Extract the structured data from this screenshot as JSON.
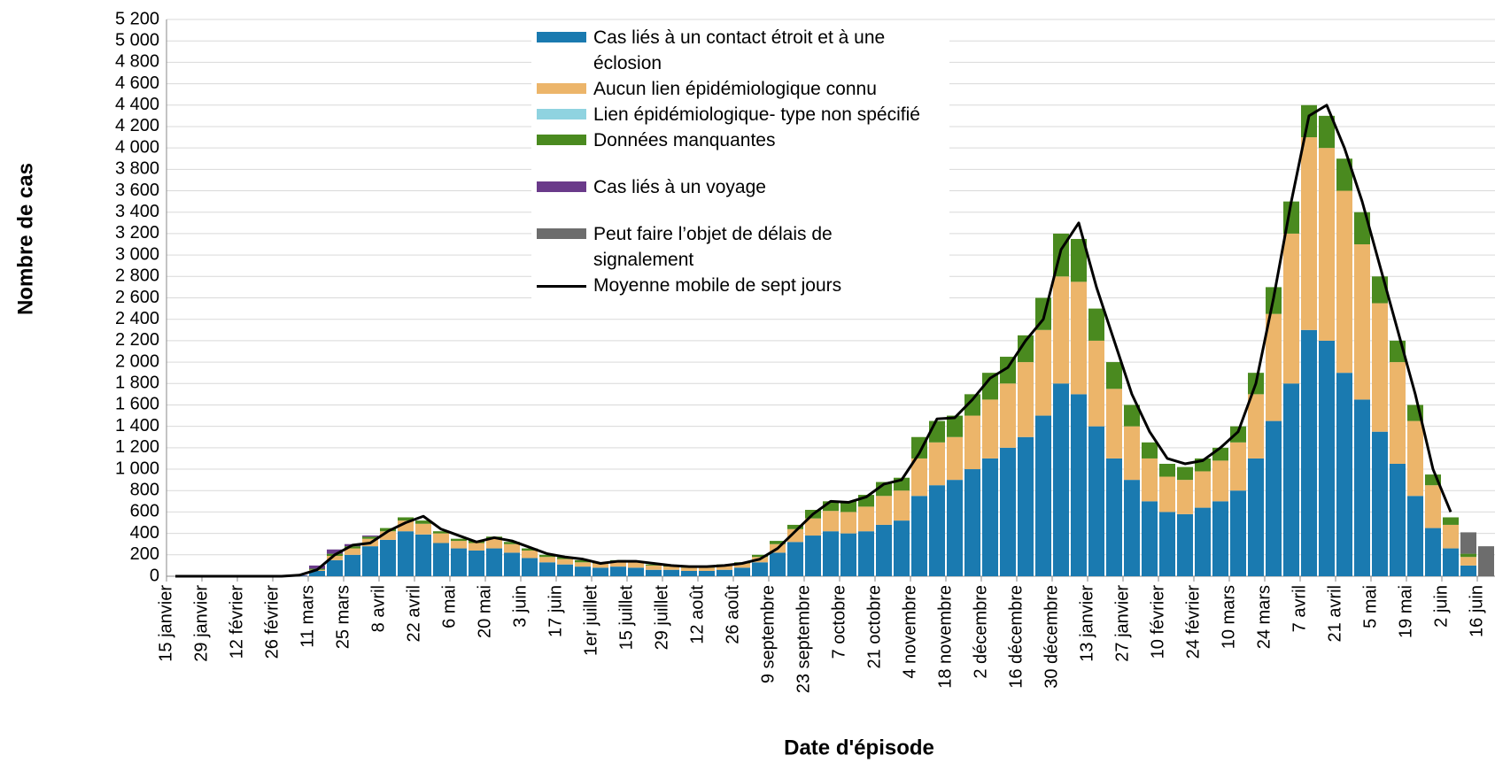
{
  "chart_data": {
    "type": "stacked-bar",
    "y_label": "Nombre de cas",
    "x_label": "Date d'épisode",
    "categories": [
      "15 janvier",
      null,
      "29 janvier",
      null,
      "12 février",
      null,
      "26 février",
      null,
      "11 mars",
      null,
      "25 mars",
      null,
      "8 avril",
      null,
      "22 avril",
      null,
      "6 mai",
      null,
      "20 mai",
      null,
      "3 juin",
      null,
      "17 juin",
      null,
      "1er juillet",
      null,
      "15 juillet",
      null,
      "29 juillet",
      null,
      "12 août",
      null,
      "26 août",
      null,
      "9 septembre",
      null,
      "23 septembre",
      null,
      "7 octobre",
      null,
      "21 octobre",
      null,
      "4 novembre",
      null,
      "18 novembre",
      null,
      "2 décembre",
      null,
      "16 décembre",
      null,
      "30 décembre",
      null,
      "13 janvier",
      null,
      "27 janvier",
      null,
      "10 février",
      null,
      "24 février",
      null,
      "10 mars",
      null,
      "24 mars",
      null,
      "7 avril",
      null,
      "21 avril",
      null,
      "5 mai",
      null,
      "19 mai",
      null,
      "2 juin",
      null,
      "16 juin"
    ],
    "series": [
      {
        "name": "Cas liés à un contact étroit et à une éclosion",
        "color": "#1a7ab0",
        "values": [
          0,
          0,
          0,
          0,
          0,
          0,
          0,
          5,
          50,
          150,
          200,
          280,
          340,
          420,
          390,
          310,
          260,
          240,
          260,
          220,
          170,
          130,
          110,
          90,
          80,
          90,
          80,
          60,
          60,
          50,
          50,
          60,
          80,
          130,
          220,
          320,
          380,
          420,
          400,
          420,
          480,
          520,
          750,
          850,
          900,
          1000,
          1100,
          1200,
          1300,
          1500,
          1800,
          1700,
          1400,
          1100,
          900,
          700,
          600,
          580,
          640,
          700,
          800,
          1100,
          1450,
          1800,
          2300,
          2200,
          1900,
          1650,
          1350,
          1050,
          750,
          450,
          260,
          100,
          0
        ]
      },
      {
        "name": "Aucun lien épidémiologique connu",
        "color": "#ecb56a",
        "values": [
          0,
          0,
          0,
          0,
          0,
          0,
          0,
          0,
          10,
          40,
          60,
          70,
          80,
          100,
          100,
          90,
          70,
          70,
          90,
          80,
          70,
          50,
          50,
          40,
          40,
          50,
          50,
          40,
          30,
          30,
          30,
          40,
          40,
          50,
          80,
          120,
          160,
          190,
          200,
          230,
          270,
          280,
          350,
          400,
          400,
          500,
          550,
          600,
          700,
          800,
          1000,
          1050,
          800,
          650,
          500,
          400,
          330,
          320,
          340,
          380,
          450,
          600,
          1000,
          1400,
          1800,
          1800,
          1700,
          1450,
          1200,
          950,
          700,
          400,
          220,
          80,
          0
        ]
      },
      {
        "name": "Lien épidémiologique- type non spécifié",
        "color": "#8fd3e0",
        "values": [
          0,
          0,
          0,
          0,
          0,
          0,
          0,
          0,
          0,
          0,
          0,
          0,
          0,
          0,
          0,
          0,
          0,
          0,
          0,
          0,
          0,
          0,
          0,
          0,
          0,
          0,
          0,
          0,
          0,
          0,
          0,
          0,
          0,
          0,
          0,
          0,
          0,
          0,
          0,
          0,
          0,
          0,
          0,
          0,
          0,
          0,
          0,
          0,
          0,
          0,
          0,
          0,
          0,
          0,
          0,
          0,
          0,
          0,
          0,
          0,
          0,
          0,
          0,
          0,
          0,
          0,
          0,
          0,
          0,
          0,
          0,
          0,
          0,
          0,
          0
        ]
      },
      {
        "name": "Données manquantes",
        "color": "#4a8a1f",
        "values": [
          0,
          0,
          0,
          0,
          0,
          0,
          0,
          0,
          10,
          20,
          20,
          20,
          30,
          30,
          30,
          20,
          20,
          20,
          20,
          20,
          20,
          20,
          20,
          20,
          10,
          10,
          10,
          10,
          10,
          10,
          10,
          10,
          10,
          20,
          30,
          40,
          80,
          90,
          100,
          110,
          130,
          120,
          200,
          200,
          200,
          200,
          250,
          250,
          250,
          300,
          400,
          400,
          300,
          250,
          200,
          150,
          120,
          120,
          120,
          120,
          150,
          200,
          250,
          300,
          300,
          300,
          300,
          300,
          250,
          200,
          150,
          100,
          70,
          30,
          0
        ]
      },
      {
        "name": "Cas liés à un voyage",
        "color": "#6a3a8a",
        "values": [
          0,
          0,
          0,
          0,
          0,
          0,
          0,
          5,
          30,
          40,
          20,
          10,
          0,
          0,
          0,
          0,
          0,
          0,
          0,
          0,
          0,
          0,
          0,
          0,
          0,
          0,
          0,
          0,
          0,
          0,
          0,
          0,
          0,
          0,
          0,
          0,
          0,
          0,
          0,
          0,
          0,
          0,
          0,
          0,
          0,
          0,
          0,
          0,
          0,
          0,
          0,
          0,
          0,
          0,
          0,
          0,
          0,
          0,
          0,
          0,
          0,
          0,
          0,
          0,
          0,
          0,
          0,
          0,
          0,
          0,
          0,
          0,
          0,
          0,
          0
        ]
      },
      {
        "name": "Peut faire l’objet de délais de signalement",
        "color": "#6d6d6d",
        "values": [
          0,
          0,
          0,
          0,
          0,
          0,
          0,
          0,
          0,
          0,
          0,
          0,
          0,
          0,
          0,
          0,
          0,
          0,
          0,
          0,
          0,
          0,
          0,
          0,
          0,
          0,
          0,
          0,
          0,
          0,
          0,
          0,
          0,
          0,
          0,
          0,
          0,
          0,
          0,
          0,
          0,
          0,
          0,
          0,
          0,
          0,
          0,
          0,
          0,
          0,
          0,
          0,
          0,
          0,
          0,
          0,
          0,
          0,
          0,
          0,
          0,
          0,
          0,
          0,
          0,
          0,
          0,
          0,
          0,
          0,
          0,
          0,
          0,
          200,
          280
        ]
      },
      {
        "name": "Moyenne mobile de sept jours",
        "color": "#000000",
        "type": "line",
        "values": [
          0,
          0,
          0,
          0,
          0,
          0,
          0,
          10,
          60,
          200,
          290,
          310,
          420,
          500,
          560,
          440,
          380,
          320,
          360,
          330,
          270,
          210,
          180,
          160,
          120,
          140,
          140,
          120,
          100,
          90,
          90,
          100,
          120,
          160,
          260,
          420,
          580,
          700,
          690,
          740,
          860,
          900,
          1150,
          1470,
          1480,
          1650,
          1850,
          1950,
          2200,
          2400,
          3050,
          3300,
          2700,
          2200,
          1700,
          1350,
          1100,
          1050,
          1080,
          1200,
          1350,
          1800,
          2600,
          3500,
          4300,
          4400,
          4000,
          3500,
          2900,
          2300,
          1700,
          1000,
          600,
          null,
          null
        ]
      }
    ],
    "ylim": [
      0,
      5200
    ],
    "yticks": [
      0,
      200,
      400,
      600,
      800,
      {
        "value": 1000,
        "label": "1 000"
      },
      {
        "value": 1200,
        "label": "1 200"
      },
      {
        "value": 1400,
        "label": "1 400"
      },
      {
        "value": 1600,
        "label": "1 600"
      },
      {
        "value": 1800,
        "label": "1 800"
      },
      {
        "value": 2000,
        "label": "2 000"
      },
      {
        "value": 2200,
        "label": "2 200"
      },
      {
        "value": 2400,
        "label": "2 400"
      },
      {
        "value": 2600,
        "label": "2 600"
      },
      {
        "value": 2800,
        "label": "2 800"
      },
      {
        "value": 3000,
        "label": "3 000"
      },
      {
        "value": 3200,
        "label": "3 200"
      },
      {
        "value": 3400,
        "label": "3 400"
      },
      {
        "value": 3600,
        "label": "3 600"
      },
      {
        "value": 3800,
        "label": "3 800"
      },
      {
        "value": 4000,
        "label": "4 000"
      },
      {
        "value": 4200,
        "label": "4 200"
      },
      {
        "value": 4400,
        "label": "4 400"
      },
      {
        "value": 4600,
        "label": "4 600"
      },
      {
        "value": 4800,
        "label": "4 800"
      },
      {
        "value": 5000,
        "label": "5 000"
      },
      {
        "value": 5200,
        "label": "5 200"
      }
    ],
    "grid": true
  }
}
